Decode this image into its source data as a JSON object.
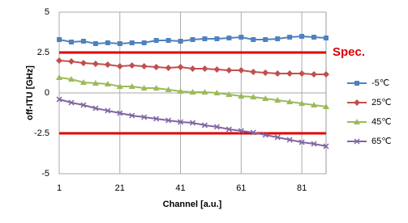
{
  "chart_data": {
    "type": "line",
    "y_label": "off-ITU [GHz]",
    "x_label": "Channel [a.u.]",
    "x": [
      1,
      5,
      9,
      13,
      17,
      21,
      25,
      29,
      33,
      37,
      41,
      45,
      49,
      53,
      57,
      61,
      65,
      69,
      73,
      77,
      81,
      85,
      89
    ],
    "xlim": [
      1,
      89
    ],
    "xticks": [
      1,
      21,
      41,
      61,
      81
    ],
    "ylim": [
      -5,
      5
    ],
    "yticks": [
      5,
      2.5,
      0,
      -2.5,
      -5
    ],
    "grid": true,
    "spec_lines": [
      2.5,
      -2.5
    ],
    "spec_color": "#e00000",
    "spec_label": "Spec.",
    "legend": "right",
    "series": [
      {
        "name": "-5℃",
        "color": "#4f81bd",
        "marker": "square",
        "values": [
          3.3,
          3.15,
          3.2,
          3.05,
          3.1,
          3.05,
          3.1,
          3.1,
          3.25,
          3.25,
          3.2,
          3.3,
          3.35,
          3.35,
          3.4,
          3.45,
          3.3,
          3.3,
          3.35,
          3.45,
          3.5,
          3.45,
          3.4
        ]
      },
      {
        "name": "25℃",
        "color": "#c0504d",
        "marker": "diamond",
        "values": [
          2.0,
          1.95,
          1.85,
          1.8,
          1.75,
          1.65,
          1.7,
          1.65,
          1.6,
          1.55,
          1.6,
          1.5,
          1.5,
          1.45,
          1.4,
          1.4,
          1.3,
          1.25,
          1.2,
          1.2,
          1.2,
          1.15,
          1.15
        ]
      },
      {
        "name": "45℃",
        "color": "#9bbb59",
        "marker": "triangle",
        "values": [
          0.95,
          0.85,
          0.65,
          0.6,
          0.55,
          0.4,
          0.4,
          0.3,
          0.3,
          0.2,
          0.1,
          0.05,
          0.05,
          0,
          -0.1,
          -0.2,
          -0.25,
          -0.35,
          -0.45,
          -0.55,
          -0.65,
          -0.75,
          -0.85
        ]
      },
      {
        "name": "65℃",
        "color": "#8064a2",
        "marker": "x",
        "values": [
          -0.4,
          -0.6,
          -0.75,
          -0.95,
          -1.1,
          -1.25,
          -1.4,
          -1.5,
          -1.6,
          -1.7,
          -1.8,
          -1.85,
          -2.0,
          -2.1,
          -2.25,
          -2.35,
          -2.45,
          -2.6,
          -2.75,
          -2.9,
          -3.05,
          -3.15,
          -3.3
        ]
      }
    ]
  }
}
